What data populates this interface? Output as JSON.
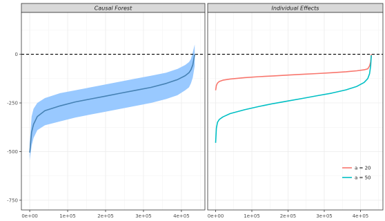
{
  "chart_data": [
    {
      "type": "line",
      "panel_title": "Causal Forest",
      "x_ticks": [
        "0e+00",
        "1e+05",
        "2e+05",
        "3e+05",
        "4e+05"
      ],
      "x_tick_values": [
        0,
        100000,
        200000,
        300000,
        400000
      ],
      "y_ticks": [
        "0",
        "-250",
        "-500",
        "-750"
      ],
      "y_tick_values": [
        0,
        -250,
        -500,
        -750
      ],
      "xlim": [
        -22000,
        462000
      ],
      "ylim": [
        -800,
        215
      ],
      "reference_line": 0,
      "grid": true,
      "series": [
        {
          "color": "#4682b4",
          "band_color": "#99c9ff",
          "x": [
            0,
            5000,
            10000,
            20000,
            40000,
            80000,
            120000,
            160000,
            200000,
            240000,
            280000,
            320000,
            360000,
            390000,
            410000,
            420000,
            425000,
            430000,
            435000
          ],
          "y": [
            -505,
            -400,
            -360,
            -320,
            -290,
            -265,
            -245,
            -230,
            -215,
            -200,
            -185,
            -170,
            -150,
            -130,
            -110,
            -95,
            -80,
            -55,
            0
          ],
          "lower": [
            -545,
            -470,
            -430,
            -390,
            -365,
            -345,
            -325,
            -310,
            -295,
            -280,
            -265,
            -250,
            -230,
            -210,
            -185,
            -170,
            -150,
            -120,
            -60
          ],
          "upper": [
            -460,
            -320,
            -280,
            -250,
            -225,
            -200,
            -185,
            -170,
            -155,
            -140,
            -125,
            -110,
            -95,
            -75,
            -55,
            -40,
            -25,
            10,
            50
          ]
        }
      ]
    },
    {
      "type": "line",
      "panel_title": "Individual Effects",
      "x_ticks": [
        "0e+00",
        "1e+05",
        "2e+05",
        "3e+05",
        "4e+05"
      ],
      "x_tick_values": [
        0,
        100000,
        200000,
        300000,
        400000
      ],
      "xlim": [
        -22000,
        462000
      ],
      "ylim": [
        -800,
        215
      ],
      "reference_line": 0,
      "grid": true,
      "legend_position": "bottom-right",
      "series": [
        {
          "name": "a = 20",
          "color": "#f8766d",
          "x": [
            0,
            2000,
            5000,
            10000,
            20000,
            40000,
            80000,
            120000,
            160000,
            200000,
            240000,
            280000,
            320000,
            360000,
            390000,
            410000,
            420000,
            425000,
            428000,
            430000
          ],
          "y": [
            -185,
            -160,
            -148,
            -140,
            -133,
            -127,
            -120,
            -115,
            -111,
            -107,
            -103,
            -99,
            -95,
            -90,
            -85,
            -80,
            -75,
            -60,
            -40,
            0
          ]
        },
        {
          "name": "a = 50",
          "color": "#00bfc4",
          "x": [
            0,
            2000,
            5000,
            10000,
            20000,
            40000,
            80000,
            120000,
            160000,
            200000,
            240000,
            280000,
            320000,
            360000,
            390000,
            410000,
            420000,
            425000,
            428000,
            430000
          ],
          "y": [
            -455,
            -380,
            -350,
            -335,
            -322,
            -305,
            -285,
            -268,
            -253,
            -240,
            -227,
            -213,
            -200,
            -183,
            -165,
            -145,
            -125,
            -100,
            -60,
            -5
          ]
        }
      ]
    }
  ]
}
